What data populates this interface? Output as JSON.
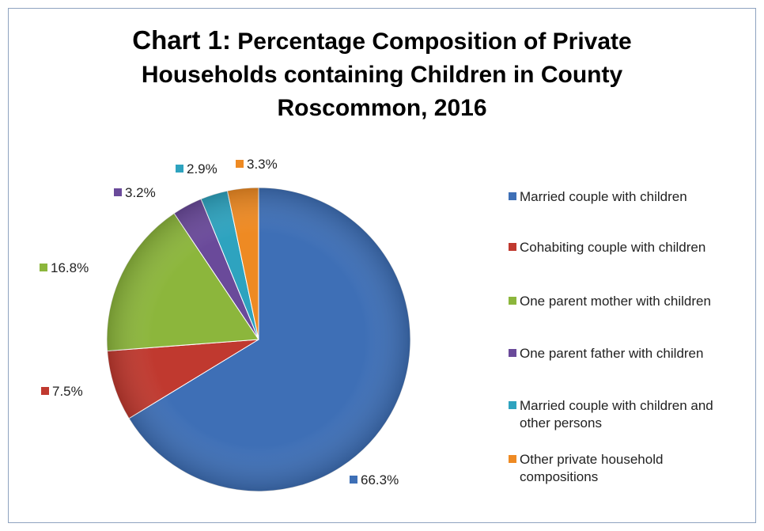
{
  "chart_data": {
    "type": "pie",
    "title_prefix": "Chart 1:",
    "title_lines": [
      "Percentage Composition of Private",
      "Households containing Children in County",
      "Roscommon, 2016"
    ],
    "unit": "%",
    "slices": [
      {
        "name": "Married couple with children",
        "value": 66.3,
        "label": "66.3%",
        "color": "#3e6fb6"
      },
      {
        "name": "Cohabiting couple with children",
        "value": 7.5,
        "label": "7.5%",
        "color": "#c0392f"
      },
      {
        "name": "One parent mother with children",
        "value": 16.8,
        "label": "16.8%",
        "color": "#8cb63c"
      },
      {
        "name": "One parent father with children",
        "value": 3.2,
        "label": "3.2%",
        "color": "#6a4a9a"
      },
      {
        "name": "Married couple with children and other persons",
        "value": 2.9,
        "label": "2.9%",
        "color": "#2ea3bf"
      },
      {
        "name": "Other private household compositions",
        "value": 3.3,
        "label": "3.3%",
        "color": "#ee8a23"
      }
    ],
    "legend_position": "right"
  }
}
